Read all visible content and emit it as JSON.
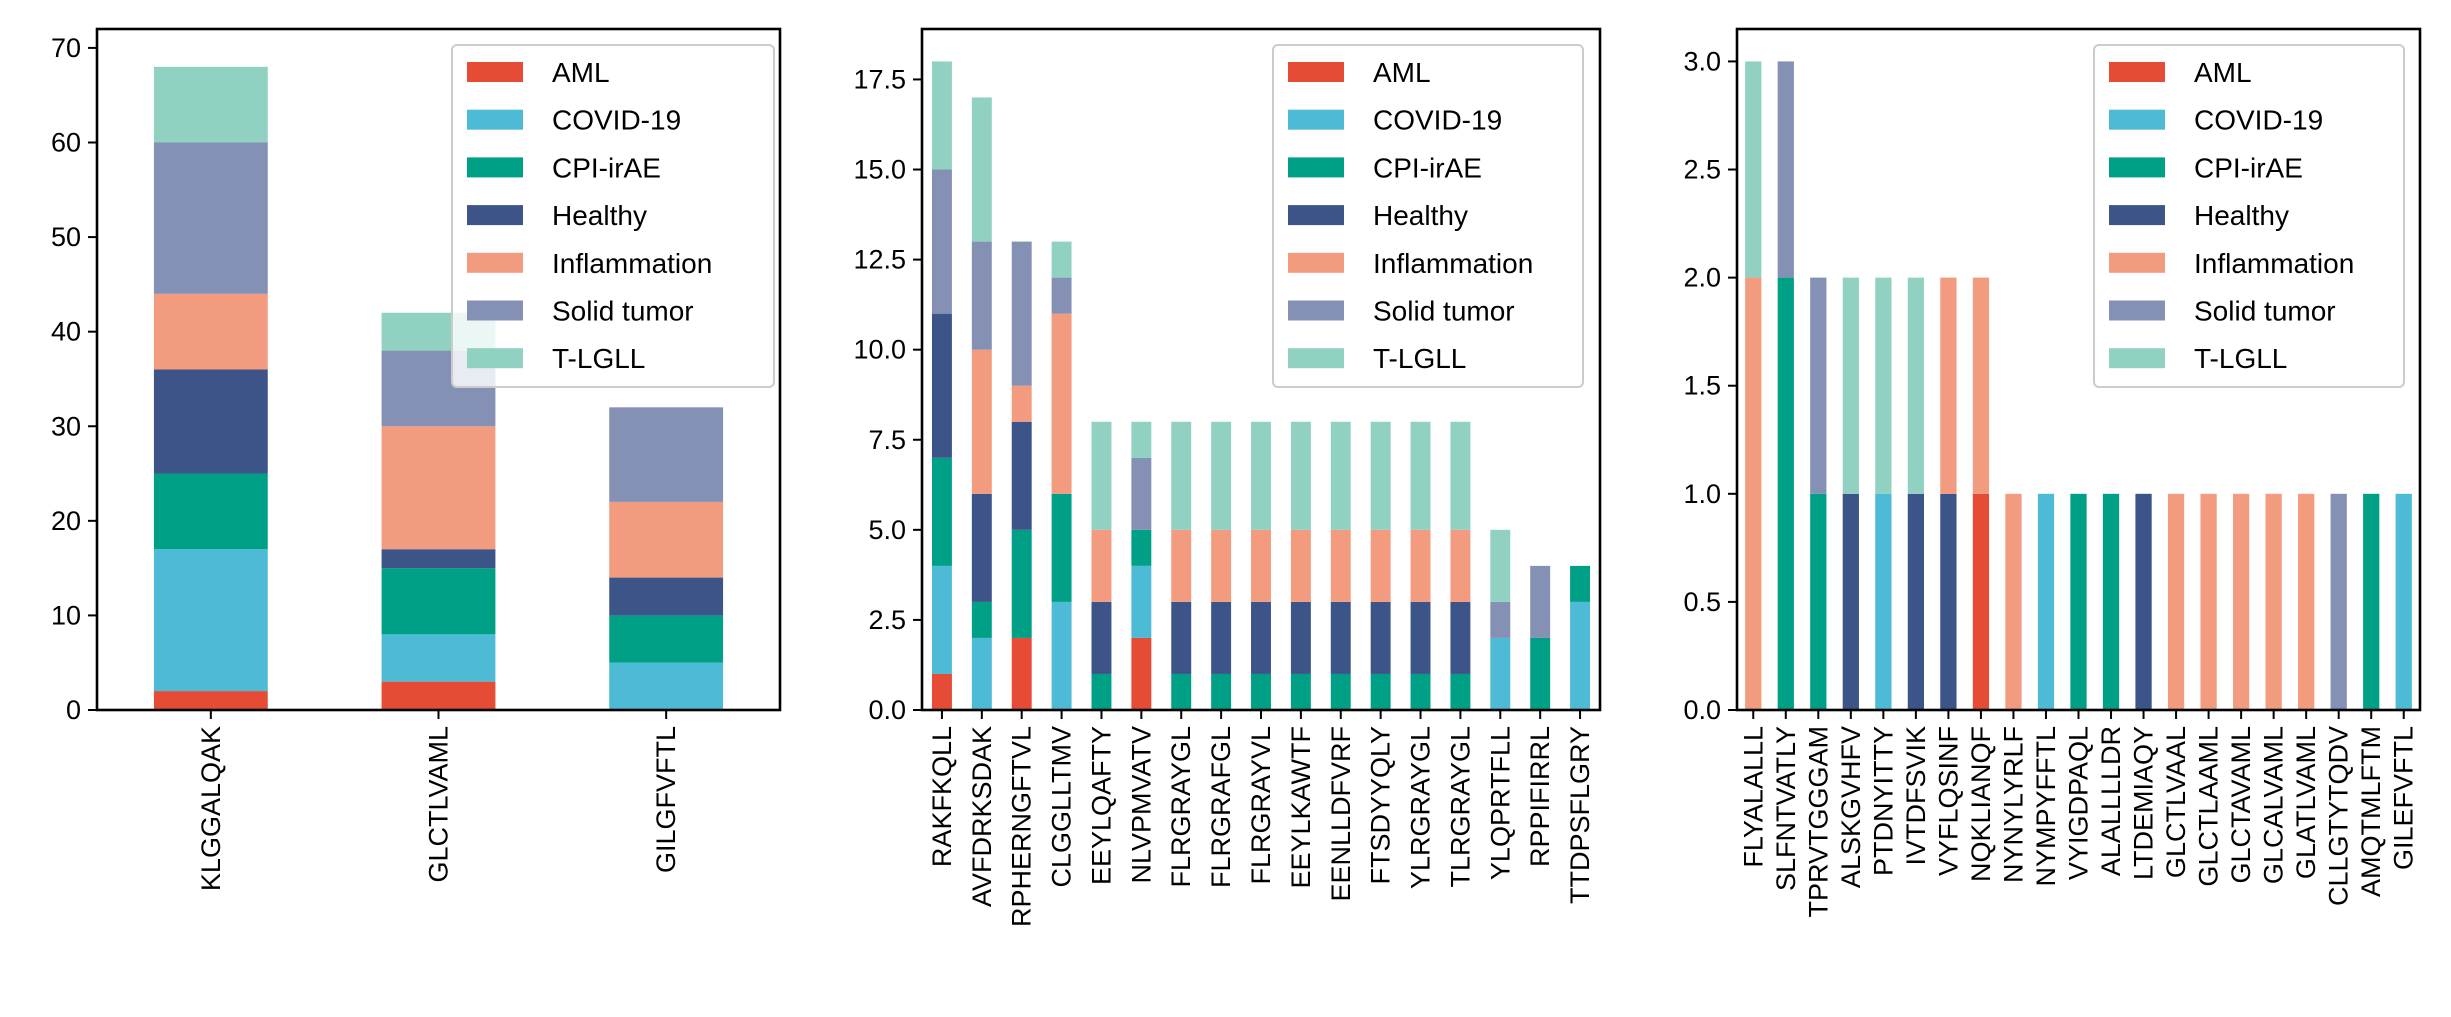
{
  "colors": {
    "AML": "#E64B35",
    "COVID-19": "#4DBBD5",
    "CPI-irAE": "#00A087",
    "Healthy": "#3C5488",
    "Inflammation": "#F39B7F",
    "Solid tumor": "#8491B4",
    "T-LGLL": "#91D1C2"
  },
  "chart_data": [
    {
      "type": "bar",
      "stacked": true,
      "legend_position": "top-right",
      "grid": false,
      "ylim": [
        0,
        72
      ],
      "yticks": [
        "0",
        "10",
        "20",
        "30",
        "40",
        "50",
        "60",
        "70"
      ],
      "categories": [
        "KLGGALQAK",
        "GLCTLVAML",
        "GILGFVFTL"
      ],
      "series": [
        {
          "name": "AML",
          "values": [
            2,
            3,
            0
          ]
        },
        {
          "name": "COVID-19",
          "values": [
            15,
            5,
            5
          ]
        },
        {
          "name": "CPI-irAE",
          "values": [
            8,
            7,
            5
          ]
        },
        {
          "name": "Healthy",
          "values": [
            11,
            2,
            4
          ]
        },
        {
          "name": "Inflammation",
          "values": [
            8,
            13,
            8
          ]
        },
        {
          "name": "Solid tumor",
          "values": [
            16,
            8,
            10
          ]
        },
        {
          "name": "T-LGLL",
          "values": [
            8,
            4,
            0
          ]
        }
      ]
    },
    {
      "type": "bar",
      "stacked": true,
      "legend_position": "top-right",
      "grid": false,
      "ylim": [
        0,
        18.9
      ],
      "yticks": [
        "0.0",
        "2.5",
        "5.0",
        "7.5",
        "10.0",
        "12.5",
        "15.0",
        "17.5"
      ],
      "categories": [
        "RAKFKQLL",
        "AVFDRKSDAK",
        "RPHERNGFTVL",
        "CLGGLLTMV",
        "EEYLQAFTY",
        "NLVPMVATV",
        "FLRGRAYGL",
        "FLRGRAFGL",
        "FLRGRAYVL",
        "EEYLKAWTF",
        "EENLLDFVRF",
        "FTSDYYQLY",
        "YLRGRAYGL",
        "TLRGRAYGL",
        "YLQPRTFLL",
        "RPPIFIRRL",
        "TTDPSFLGRY"
      ],
      "series": [
        {
          "name": "AML",
          "values": [
            1,
            0,
            2,
            0,
            0,
            2,
            0,
            0,
            0,
            0,
            0,
            0,
            0,
            0,
            0,
            0,
            0
          ]
        },
        {
          "name": "COVID-19",
          "values": [
            3,
            2,
            0,
            3,
            0,
            2,
            0,
            0,
            0,
            0,
            0,
            0,
            0,
            0,
            2,
            0,
            3
          ]
        },
        {
          "name": "CPI-irAE",
          "values": [
            3,
            1,
            3,
            3,
            1,
            1,
            1,
            1,
            1,
            1,
            1,
            1,
            1,
            1,
            0,
            2,
            1
          ]
        },
        {
          "name": "Healthy",
          "values": [
            4,
            3,
            3,
            0,
            2,
            0,
            2,
            2,
            2,
            2,
            2,
            2,
            2,
            2,
            0,
            0,
            0
          ]
        },
        {
          "name": "Inflammation",
          "values": [
            0,
            4,
            1,
            5,
            2,
            0,
            2,
            2,
            2,
            2,
            2,
            2,
            2,
            2,
            0,
            0,
            0
          ]
        },
        {
          "name": "Solid tumor",
          "values": [
            4,
            3,
            4,
            1,
            0,
            2,
            0,
            0,
            0,
            0,
            0,
            0,
            0,
            0,
            1,
            2,
            0
          ]
        },
        {
          "name": "T-LGLL",
          "values": [
            3,
            4,
            0,
            1,
            3,
            1,
            3,
            3,
            3,
            3,
            3,
            3,
            3,
            3,
            2,
            0,
            0
          ]
        }
      ]
    },
    {
      "type": "bar",
      "stacked": true,
      "legend_position": "top-right",
      "grid": false,
      "ylim": [
        0,
        3.15
      ],
      "yticks": [
        "0.0",
        "0.5",
        "1.0",
        "1.5",
        "2.0",
        "2.5",
        "3.0"
      ],
      "categories": [
        "FLYALALLL",
        "SLFNTVATLY",
        "TPRVTGGGAM",
        "ALSKGVHFV",
        "PTDNYITTY",
        "IVTDFSVIK",
        "VYFLQSINF",
        "NQKLIANQF",
        "NYNYLYRLF",
        "NYMPYFFTL",
        "VYIGDPAQL",
        "ALALLLLDR",
        "LTDEMIAQY",
        "GLCTLVAAL",
        "GLCTLAAML",
        "GLCTAVAML",
        "GLCALVAML",
        "GLATLVAML",
        "CLLGTYTQDV",
        "AMQTMLFTM",
        "GILEFVFTL"
      ],
      "series": [
        {
          "name": "AML",
          "values": [
            0,
            0,
            0,
            0,
            0,
            0,
            0,
            1,
            0,
            0,
            0,
            0,
            0,
            0,
            0,
            0,
            0,
            0,
            0,
            0,
            0
          ]
        },
        {
          "name": "COVID-19",
          "values": [
            0,
            0,
            0,
            0,
            1,
            0,
            0,
            0,
            0,
            1,
            0,
            0,
            0,
            0,
            0,
            0,
            0,
            0,
            0,
            0,
            1
          ]
        },
        {
          "name": "CPI-irAE",
          "values": [
            0,
            2,
            1,
            0,
            0,
            0,
            0,
            0,
            0,
            0,
            1,
            1,
            0,
            0,
            0,
            0,
            0,
            0,
            0,
            1,
            0
          ]
        },
        {
          "name": "Healthy",
          "values": [
            0,
            0,
            0,
            1,
            0,
            1,
            1,
            0,
            0,
            0,
            0,
            0,
            1,
            0,
            0,
            0,
            0,
            0,
            0,
            0,
            0
          ]
        },
        {
          "name": "Inflammation",
          "values": [
            2,
            0,
            0,
            0,
            0,
            0,
            1,
            1,
            1,
            0,
            0,
            0,
            0,
            1,
            1,
            1,
            1,
            1,
            0,
            0,
            0
          ]
        },
        {
          "name": "Solid tumor",
          "values": [
            0,
            1,
            1,
            0,
            0,
            0,
            0,
            0,
            0,
            0,
            0,
            0,
            0,
            0,
            0,
            0,
            0,
            0,
            1,
            0,
            0
          ]
        },
        {
          "name": "T-LGLL",
          "values": [
            1,
            0,
            0,
            1,
            1,
            1,
            0,
            0,
            0,
            0,
            0,
            0,
            0,
            0,
            0,
            0,
            0,
            0,
            0,
            0,
            0
          ]
        }
      ]
    }
  ]
}
